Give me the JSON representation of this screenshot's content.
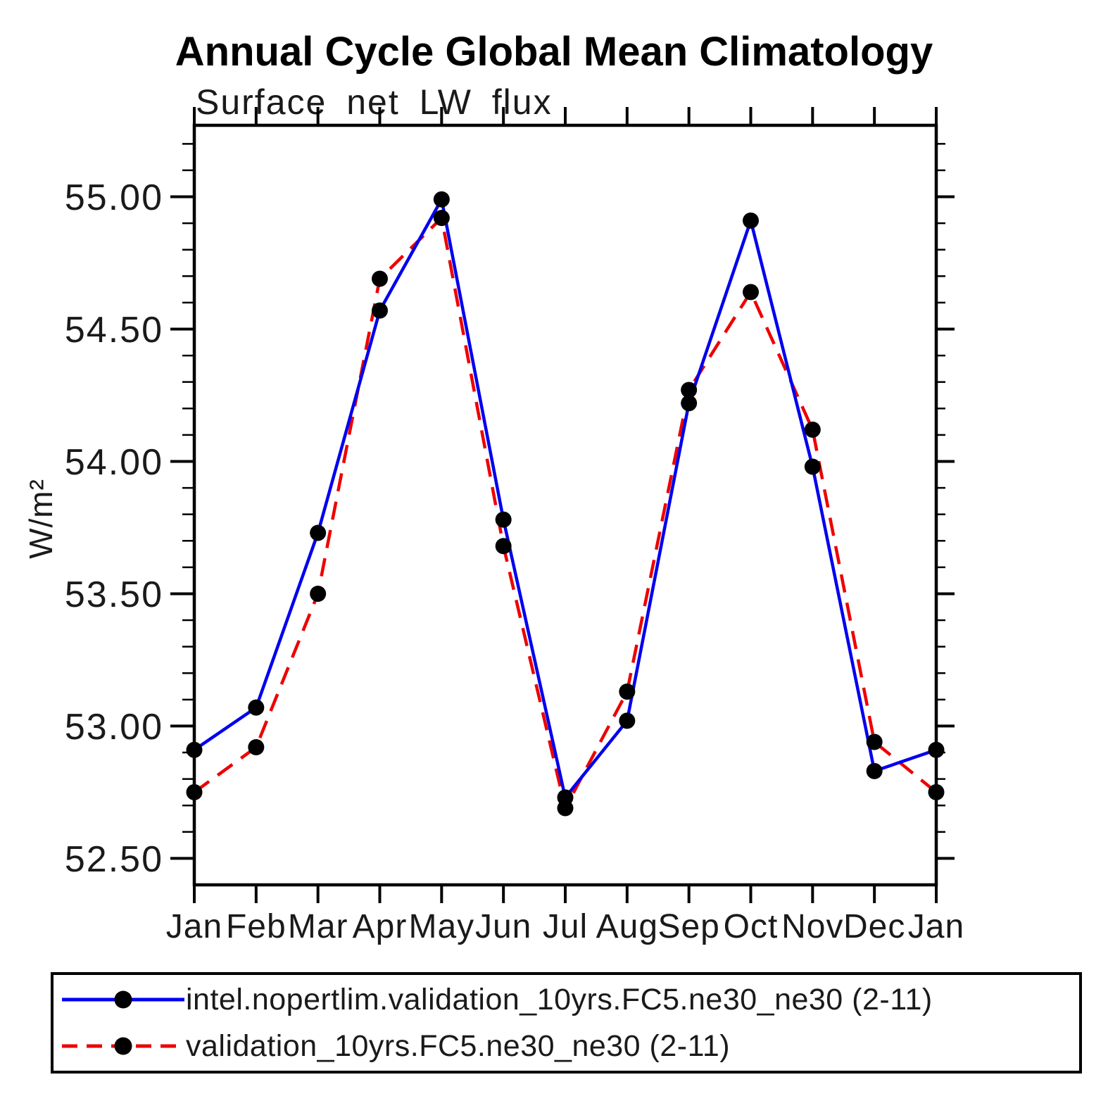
{
  "page": {
    "background": "#ffffff"
  },
  "chart_data": {
    "type": "line",
    "title": "Annual Cycle Global Mean Climatology",
    "subtitle": "Surface net LW flux",
    "ylabel": "W/m²",
    "xlabel": "",
    "categories": [
      "Jan",
      "Feb",
      "Mar",
      "Apr",
      "May",
      "Jun",
      "Jul",
      "Aug",
      "Sep",
      "Oct",
      "Nov",
      "Dec",
      "Jan"
    ],
    "series": [
      {
        "name": "intel.nopertlim.validation_10yrs.FC5.ne30_ne30 (2-11)",
        "color": "#0000ee",
        "line_style": "solid",
        "marker": "filled-circle",
        "marker_color": "#000000",
        "values": [
          52.91,
          53.07,
          53.73,
          54.57,
          54.99,
          53.78,
          52.73,
          53.02,
          54.22,
          54.91,
          53.98,
          52.83,
          52.91
        ]
      },
      {
        "name": "validation_10yrs.FC5.ne30_ne30 (2-11)",
        "color": "#ee0000",
        "line_style": "dashed",
        "marker": "filled-circle",
        "marker_color": "#000000",
        "values": [
          52.75,
          52.92,
          53.5,
          54.69,
          54.92,
          53.68,
          52.69,
          53.13,
          54.27,
          54.64,
          54.12,
          52.94,
          52.75
        ]
      }
    ],
    "ylim": [
      52.4,
      55.27
    ],
    "ytick_major": [
      52.5,
      53.0,
      53.5,
      54.0,
      54.5,
      55.0
    ],
    "ytick_labels": [
      "52.50",
      "53.00",
      "53.50",
      "54.00",
      "54.50",
      "55.00"
    ],
    "ytick_minor_step": 0.1,
    "grid": false,
    "legend_position": "bottom-box",
    "axis_color": "#000000"
  }
}
